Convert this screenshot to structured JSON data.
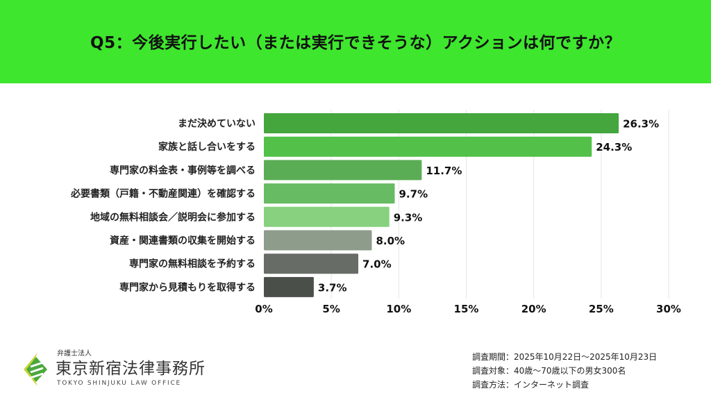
{
  "header": {
    "title": "Q5：今後実行したい（または実行できそうな）アクションは何ですか？",
    "color": "#3ee62e"
  },
  "chart_data": {
    "type": "bar",
    "orientation": "horizontal",
    "categories": [
      "まだ決めていない",
      "家族と話し合いをする",
      "専門家の料金表・事例等を調べる",
      "必要書類（戸籍・不動産関連）を確認する",
      "地域の無料相談会／説明会に参加する",
      "資産・関連書類の収集を開始する",
      "専門家の無料相談を予約する",
      "専門家から見積もりを取得する"
    ],
    "values": [
      26.3,
      24.3,
      11.7,
      9.7,
      9.3,
      8.0,
      7.0,
      3.7
    ],
    "value_labels": [
      "26.3%",
      "24.3%",
      "11.7%",
      "9.7%",
      "9.3%",
      "8.0%",
      "7.0%",
      "3.7%"
    ],
    "colors": [
      "#45a63e",
      "#52c049",
      "#5bad55",
      "#67bb62",
      "#87d17f",
      "#8d9c8b",
      "#686c66",
      "#4a4f49"
    ],
    "xlim": [
      0,
      30
    ],
    "xticks": [
      0,
      5,
      10,
      15,
      20,
      25,
      30
    ],
    "xtick_labels": [
      "0%",
      "5%",
      "10%",
      "15%",
      "20%",
      "25%",
      "30%"
    ],
    "grid": "vertical",
    "title": "",
    "xlabel": "",
    "ylabel": ""
  },
  "logo": {
    "small": "弁護士法人",
    "main": "東京新宿法律事務所",
    "english": "TOKYO SHINJUKU LAW OFFICE"
  },
  "notes": [
    "調査期間：2025年10月22日～2025年10月23日",
    "調査対象：40歳～70歳以下の男女300名",
    "調査方法：インターネット調査"
  ]
}
